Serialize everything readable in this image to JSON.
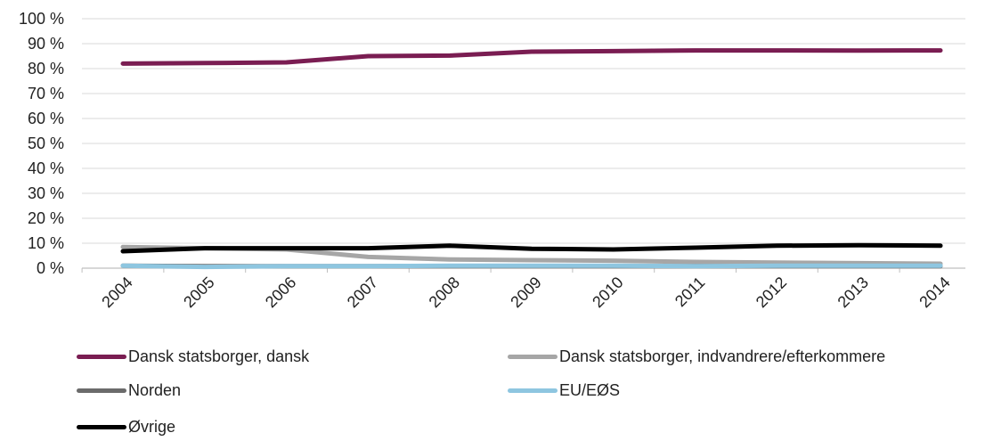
{
  "chart_data": {
    "type": "line",
    "categories": [
      "2004",
      "2005",
      "2006",
      "2007",
      "2008",
      "2009",
      "2010",
      "2011",
      "2012",
      "2013",
      "2014"
    ],
    "ylim": [
      0,
      100
    ],
    "y_ticks": [
      "0 %",
      "10 %",
      "20 %",
      "30 %",
      "40 %",
      "50 %",
      "60 %",
      "70 %",
      "80 %",
      "90 %",
      "100 %"
    ],
    "grid": true,
    "legend_position": "bottom",
    "series": [
      {
        "name": "Dansk statsborger, dansk",
        "color": "#7a1d52",
        "values": [
          82.0,
          82.2,
          82.5,
          85.0,
          85.2,
          86.8,
          87.0,
          87.3,
          87.3,
          87.2,
          87.3
        ]
      },
      {
        "name": "Dansk statsborger, indvandrere/efterkommere",
        "color": "#a6a6a6",
        "values": [
          8.5,
          8.0,
          7.5,
          4.5,
          3.5,
          3.2,
          3.0,
          2.5,
          2.2,
          2.0,
          1.8
        ]
      },
      {
        "name": "Norden",
        "color": "#6b6b6b",
        "values": [
          1.0,
          0.8,
          0.8,
          0.8,
          0.8,
          0.8,
          0.8,
          0.8,
          0.8,
          0.8,
          0.8
        ]
      },
      {
        "name": "EU/EØS",
        "color": "#8ec6e0",
        "values": [
          1.0,
          0.5,
          0.8,
          0.8,
          1.0,
          1.0,
          1.0,
          0.8,
          1.0,
          1.0,
          1.0
        ]
      },
      {
        "name": "Øvrige",
        "color": "#000000",
        "values": [
          6.8,
          8.0,
          8.0,
          8.0,
          9.0,
          7.8,
          7.5,
          8.2,
          9.0,
          9.2,
          9.0
        ]
      }
    ]
  }
}
